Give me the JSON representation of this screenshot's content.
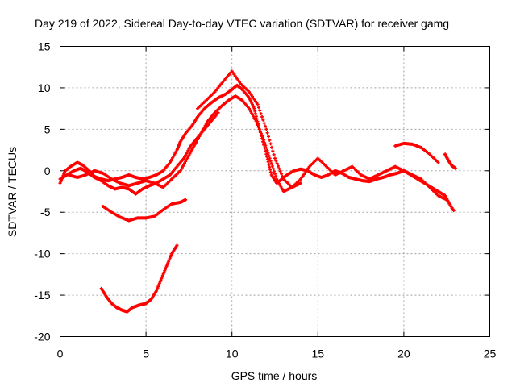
{
  "chart_data": {
    "type": "scatter",
    "title": "Day 219 of 2022, Sidereal Day-to-day VTEC variation (SDTVAR) for receiver gamg",
    "xlabel": "GPS time / hours",
    "ylabel": "SDTVAR / TECUs",
    "xlim": [
      0,
      25
    ],
    "ylim": [
      -20,
      15
    ],
    "x_ticks": [
      0,
      5,
      10,
      15,
      20,
      25
    ],
    "y_ticks": [
      -20,
      -15,
      -10,
      -5,
      0,
      5,
      10,
      15
    ],
    "x_tick_labels": [
      "0",
      "5",
      "10",
      "15",
      "20",
      "25"
    ],
    "y_tick_labels": [
      "-20",
      "-15",
      "-10",
      "-5",
      "0",
      "5",
      "10",
      "15"
    ],
    "grid": true,
    "marker_color": "#ff0000",
    "series": [
      {
        "name": "trace-1",
        "x": [
          0.0,
          0.3,
          0.6,
          1.0,
          1.3,
          1.7,
          2.0,
          2.4,
          2.8,
          3.2,
          3.6,
          4.0,
          4.4,
          4.8,
          5.2,
          5.6,
          6.0,
          6.4,
          6.8,
          7.0,
          7.3,
          7.7,
          8.0,
          8.4,
          8.8,
          9.2,
          9.6,
          10.0,
          10.3,
          10.6,
          11.0,
          11.3,
          11.6,
          12.0,
          12.3,
          12.6,
          12.9,
          13.2,
          13.6,
          14.0,
          14.4,
          14.8,
          15.2,
          15.6,
          16.0,
          16.4,
          16.8,
          17.2,
          17.6,
          18.0,
          18.4,
          18.8,
          19.2,
          19.6,
          20.0,
          20.4,
          20.8,
          21.2,
          21.6,
          22.0,
          22.4,
          22.8
        ],
        "y": [
          -1.5,
          0.0,
          0.5,
          1.0,
          0.7,
          0.0,
          -0.7,
          -1.0,
          -1.2,
          -1.0,
          -0.8,
          -0.5,
          -0.8,
          -1.0,
          -0.8,
          -0.5,
          0.0,
          1.0,
          2.5,
          3.5,
          4.5,
          5.5,
          6.5,
          7.5,
          8.2,
          8.8,
          9.2,
          9.8,
          10.3,
          9.8,
          8.8,
          7.5,
          5.0,
          2.0,
          -0.5,
          -1.5,
          -1.0,
          -0.5,
          0.0,
          0.2,
          0.0,
          -0.5,
          -0.8,
          -0.5,
          0.0,
          -0.3,
          -0.8,
          -1.0,
          -1.2,
          -1.3,
          -1.0,
          -0.8,
          -0.5,
          -0.3,
          0.0,
          -0.5,
          -1.0,
          -1.5,
          -2.0,
          -2.5,
          -3.0,
          -4.5
        ]
      },
      {
        "name": "trace-2",
        "x": [
          0.5,
          1.0,
          1.5,
          2.0,
          2.5,
          3.0,
          3.5,
          4.0,
          4.5,
          5.0,
          5.5,
          6.0,
          6.5,
          7.0,
          7.4,
          7.8,
          8.2,
          8.6,
          9.0,
          9.4,
          9.8,
          10.2,
          10.6,
          11.0,
          11.4,
          11.8,
          12.2,
          12.6,
          13.0,
          13.5,
          14.0,
          14.5,
          15.0,
          15.5,
          16.0,
          16.5,
          17.0,
          17.5,
          18.0,
          18.5,
          19.0,
          19.5,
          20.0,
          20.5,
          21.0,
          21.5,
          22.0,
          22.5,
          22.9
        ],
        "y": [
          -0.5,
          -0.8,
          -0.5,
          0.0,
          -0.3,
          -1.0,
          -1.5,
          -1.8,
          -1.5,
          -1.2,
          -1.5,
          -2.0,
          -1.0,
          0.0,
          1.5,
          3.0,
          4.5,
          6.0,
          7.0,
          7.8,
          8.5,
          9.0,
          8.5,
          7.5,
          6.0,
          4.0,
          1.5,
          -1.0,
          -2.5,
          -2.0,
          -1.0,
          0.5,
          1.5,
          0.5,
          -0.5,
          0.0,
          0.5,
          -0.5,
          -1.0,
          -0.5,
          0.0,
          0.5,
          0.0,
          -0.5,
          -1.0,
          -2.0,
          -3.0,
          -3.5,
          -4.8
        ]
      },
      {
        "name": "trace-3",
        "x": [
          2.5,
          3.0,
          3.5,
          4.0,
          4.5,
          5.0,
          5.5,
          6.0,
          6.5,
          7.0,
          7.3
        ],
        "y": [
          -4.3,
          -5.0,
          -5.6,
          -6.0,
          -5.7,
          -5.7,
          -5.5,
          -4.7,
          -4.0,
          -3.8,
          -3.5
        ]
      },
      {
        "name": "trace-4",
        "x": [
          2.4,
          2.7,
          3.0,
          3.3,
          3.6,
          3.9,
          4.2,
          4.6,
          5.0,
          5.3,
          5.6,
          5.9,
          6.2,
          6.5,
          6.8
        ],
        "y": [
          -14.2,
          -15.2,
          -16.0,
          -16.5,
          -16.8,
          -17.0,
          -16.5,
          -16.2,
          -16.0,
          -15.5,
          -14.5,
          -13.0,
          -11.5,
          -10.0,
          -9.0
        ]
      },
      {
        "name": "trace-5",
        "x": [
          8.0,
          8.5,
          9.0,
          9.5,
          10.0,
          10.5,
          11.0,
          11.5,
          12.0,
          12.5,
          13.0,
          13.5,
          14.0
        ],
        "y": [
          7.5,
          8.5,
          9.5,
          10.8,
          12.0,
          10.5,
          9.5,
          8.0,
          5.0,
          1.5,
          -1.0,
          -2.0,
          -1.5
        ]
      },
      {
        "name": "trace-6",
        "x": [
          19.5,
          20.0,
          20.5,
          21.0,
          21.5,
          22.0
        ],
        "y": [
          3.0,
          3.3,
          3.2,
          2.8,
          2.0,
          1.0
        ]
      },
      {
        "name": "trace-7",
        "x": [
          22.4,
          22.6,
          22.8,
          23.0
        ],
        "y": [
          2.0,
          1.2,
          0.6,
          0.3
        ]
      },
      {
        "name": "trace-8",
        "x": [
          0.0,
          0.4,
          0.8,
          1.2,
          1.6,
          2.0,
          2.4,
          2.8,
          3.2,
          3.6,
          4.0,
          4.4,
          4.8,
          5.2,
          5.6,
          6.0,
          6.4,
          6.8,
          7.2,
          7.6,
          8.0,
          8.4,
          8.8,
          9.2
        ],
        "y": [
          -1.0,
          -0.5,
          0.0,
          0.3,
          -0.2,
          -0.8,
          -1.2,
          -1.8,
          -2.2,
          -2.0,
          -2.2,
          -2.8,
          -2.2,
          -1.8,
          -1.5,
          -1.0,
          -0.5,
          0.5,
          1.5,
          3.0,
          4.0,
          5.0,
          6.0,
          7.0
        ]
      }
    ]
  }
}
